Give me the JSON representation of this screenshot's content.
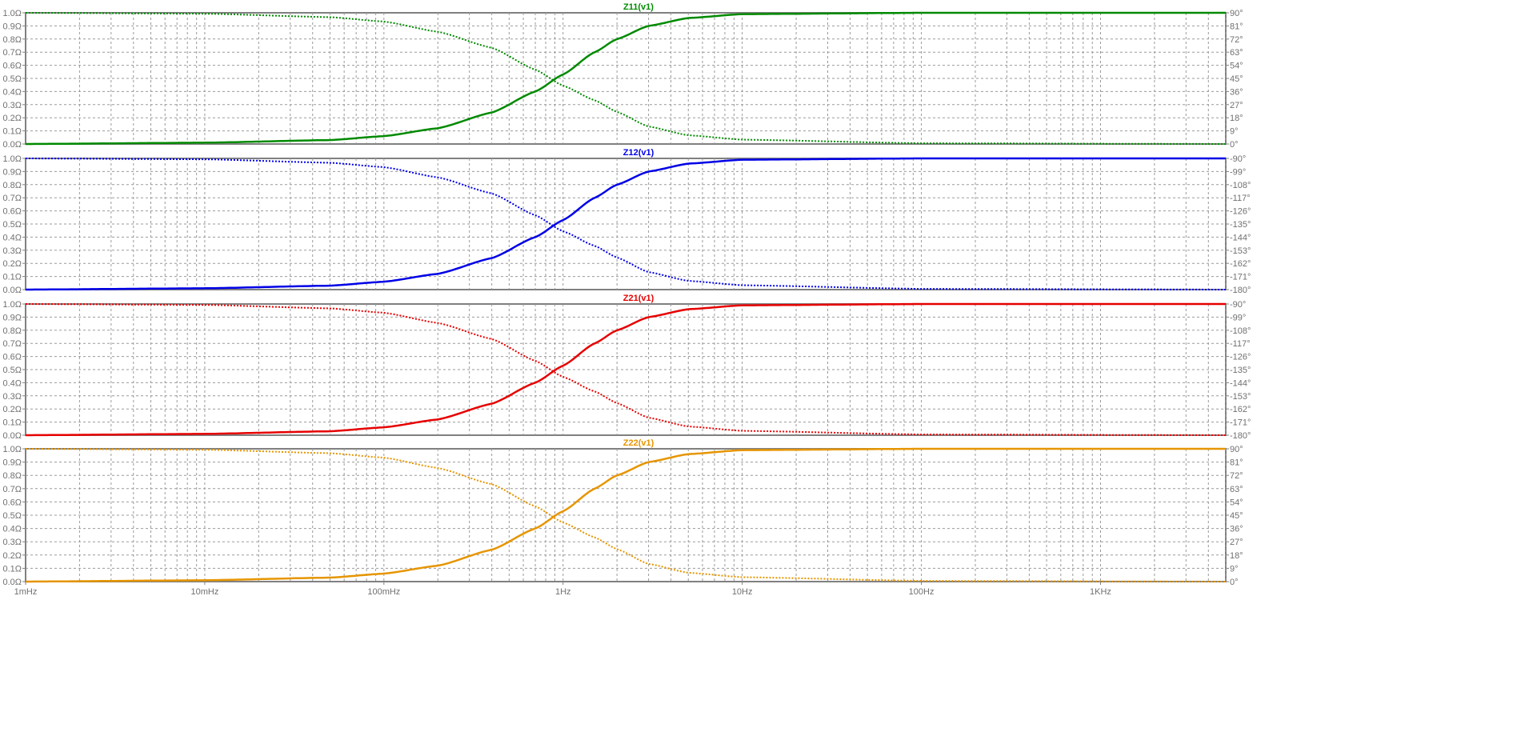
{
  "chart_data": [
    {
      "type": "line",
      "title": "Z11(v1)",
      "color": "#008a00",
      "x_scale": "log",
      "xlim": [
        0.001,
        5000
      ],
      "y_left": {
        "ticks": [
          "0.0Ω",
          "0.1Ω",
          "0.2Ω",
          "0.3Ω",
          "0.4Ω",
          "0.5Ω",
          "0.6Ω",
          "0.7Ω",
          "0.8Ω",
          "0.9Ω",
          "1.0Ω"
        ],
        "lim": [
          0,
          1
        ]
      },
      "y_right": {
        "ticks": [
          "0°",
          "9°",
          "18°",
          "27°",
          "36°",
          "45°",
          "54°",
          "63°",
          "72°",
          "81°",
          "90°"
        ],
        "lim": [
          0,
          90
        ]
      },
      "series": [
        {
          "style": "solid",
          "axis": "left",
          "x": [
            0.001,
            0.01,
            0.05,
            0.1,
            0.2,
            0.4,
            0.7,
            1,
            1.5,
            2,
            3,
            5,
            10,
            100,
            5000
          ],
          "y": [
            0,
            0.01,
            0.03,
            0.06,
            0.12,
            0.24,
            0.4,
            0.53,
            0.7,
            0.8,
            0.9,
            0.96,
            0.99,
            1,
            1
          ]
        },
        {
          "style": "dotted",
          "axis": "right",
          "x": [
            0.001,
            0.01,
            0.05,
            0.1,
            0.2,
            0.4,
            0.7,
            1,
            1.5,
            2,
            3,
            5,
            10,
            100,
            5000
          ],
          "y": [
            90,
            89.4,
            87,
            84,
            77,
            66,
            51,
            40,
            30,
            22,
            12,
            6,
            3,
            0.5,
            0
          ]
        }
      ]
    },
    {
      "type": "line",
      "title": "Z12(v1)",
      "color": "#0000e6",
      "x_scale": "log",
      "xlim": [
        0.001,
        5000
      ],
      "y_left": {
        "ticks": [
          "0.0Ω",
          "0.1Ω",
          "0.2Ω",
          "0.3Ω",
          "0.4Ω",
          "0.5Ω",
          "0.6Ω",
          "0.7Ω",
          "0.8Ω",
          "0.9Ω",
          "1.0Ω"
        ],
        "lim": [
          0,
          1
        ]
      },
      "y_right": {
        "ticks": [
          "-180°",
          "-171°",
          "-162°",
          "-153°",
          "-144°",
          "-135°",
          "-126°",
          "-117°",
          "-108°",
          "-99°",
          "-90°"
        ],
        "lim": [
          -180,
          -90
        ]
      },
      "series": [
        {
          "style": "solid",
          "axis": "left",
          "x": [
            0.001,
            0.01,
            0.05,
            0.1,
            0.2,
            0.4,
            0.7,
            1,
            1.5,
            2,
            3,
            5,
            10,
            100,
            5000
          ],
          "y": [
            0,
            0.01,
            0.03,
            0.06,
            0.12,
            0.24,
            0.4,
            0.53,
            0.7,
            0.8,
            0.9,
            0.96,
            0.99,
            1,
            1
          ]
        },
        {
          "style": "dotted",
          "axis": "right",
          "x": [
            0.001,
            0.01,
            0.05,
            0.1,
            0.2,
            0.4,
            0.7,
            1,
            1.5,
            2,
            3,
            5,
            10,
            100,
            5000
          ],
          "y": [
            -90,
            -90.6,
            -93,
            -96,
            -103,
            -114,
            -129,
            -140,
            -150,
            -158,
            -168,
            -174,
            -177,
            -179.5,
            -180
          ]
        }
      ]
    },
    {
      "type": "line",
      "title": "Z21(v1)",
      "color": "#e60000",
      "x_scale": "log",
      "xlim": [
        0.001,
        5000
      ],
      "y_left": {
        "ticks": [
          "0.0Ω",
          "0.1Ω",
          "0.2Ω",
          "0.3Ω",
          "0.4Ω",
          "0.5Ω",
          "0.6Ω",
          "0.7Ω",
          "0.8Ω",
          "0.9Ω",
          "1.0Ω"
        ],
        "lim": [
          0,
          1
        ]
      },
      "y_right": {
        "ticks": [
          "-180°",
          "-171°",
          "-162°",
          "-153°",
          "-144°",
          "-135°",
          "-126°",
          "-117°",
          "-108°",
          "-99°",
          "-90°"
        ],
        "lim": [
          -180,
          -90
        ]
      },
      "series": [
        {
          "style": "solid",
          "axis": "left",
          "x": [
            0.001,
            0.01,
            0.05,
            0.1,
            0.2,
            0.4,
            0.7,
            1,
            1.5,
            2,
            3,
            5,
            10,
            100,
            5000
          ],
          "y": [
            0,
            0.01,
            0.03,
            0.06,
            0.12,
            0.24,
            0.4,
            0.53,
            0.7,
            0.8,
            0.9,
            0.96,
            0.99,
            1,
            1
          ]
        },
        {
          "style": "dotted",
          "axis": "right",
          "x": [
            0.001,
            0.01,
            0.05,
            0.1,
            0.2,
            0.4,
            0.7,
            1,
            1.5,
            2,
            3,
            5,
            10,
            100,
            5000
          ],
          "y": [
            -90,
            -90.6,
            -93,
            -96,
            -103,
            -114,
            -129,
            -140,
            -150,
            -158,
            -168,
            -174,
            -177,
            -179.5,
            -180
          ]
        }
      ]
    },
    {
      "type": "line",
      "title": "Z22(v1)",
      "color": "#e69500",
      "x_scale": "log",
      "xlim": [
        0.001,
        5000
      ],
      "x_ticks": [
        {
          "value": 0.001,
          "label": "1mHz"
        },
        {
          "value": 0.01,
          "label": "10mHz"
        },
        {
          "value": 0.1,
          "label": "100mHz"
        },
        {
          "value": 1,
          "label": "1Hz"
        },
        {
          "value": 10,
          "label": "10Hz"
        },
        {
          "value": 100,
          "label": "100Hz"
        },
        {
          "value": 1000,
          "label": "1KHz"
        }
      ],
      "y_left": {
        "ticks": [
          "0.0Ω",
          "0.1Ω",
          "0.2Ω",
          "0.3Ω",
          "0.4Ω",
          "0.5Ω",
          "0.6Ω",
          "0.7Ω",
          "0.8Ω",
          "0.9Ω",
          "1.0Ω"
        ],
        "lim": [
          0,
          1
        ]
      },
      "y_right": {
        "ticks": [
          "0°",
          "9°",
          "18°",
          "27°",
          "36°",
          "45°",
          "54°",
          "63°",
          "72°",
          "81°",
          "90°"
        ],
        "lim": [
          0,
          90
        ]
      },
      "series": [
        {
          "style": "solid",
          "axis": "left",
          "x": [
            0.001,
            0.01,
            0.05,
            0.1,
            0.2,
            0.4,
            0.7,
            1,
            1.5,
            2,
            3,
            5,
            10,
            100,
            5000
          ],
          "y": [
            0,
            0.01,
            0.03,
            0.06,
            0.12,
            0.24,
            0.4,
            0.53,
            0.7,
            0.8,
            0.9,
            0.96,
            0.99,
            1,
            1
          ]
        },
        {
          "style": "dotted",
          "axis": "right",
          "x": [
            0.001,
            0.01,
            0.05,
            0.1,
            0.2,
            0.4,
            0.7,
            1,
            1.5,
            2,
            3,
            5,
            10,
            100,
            5000
          ],
          "y": [
            90,
            89.4,
            87,
            84,
            77,
            66,
            51,
            40,
            30,
            22,
            12,
            6,
            3,
            0.5,
            0
          ]
        }
      ]
    }
  ]
}
